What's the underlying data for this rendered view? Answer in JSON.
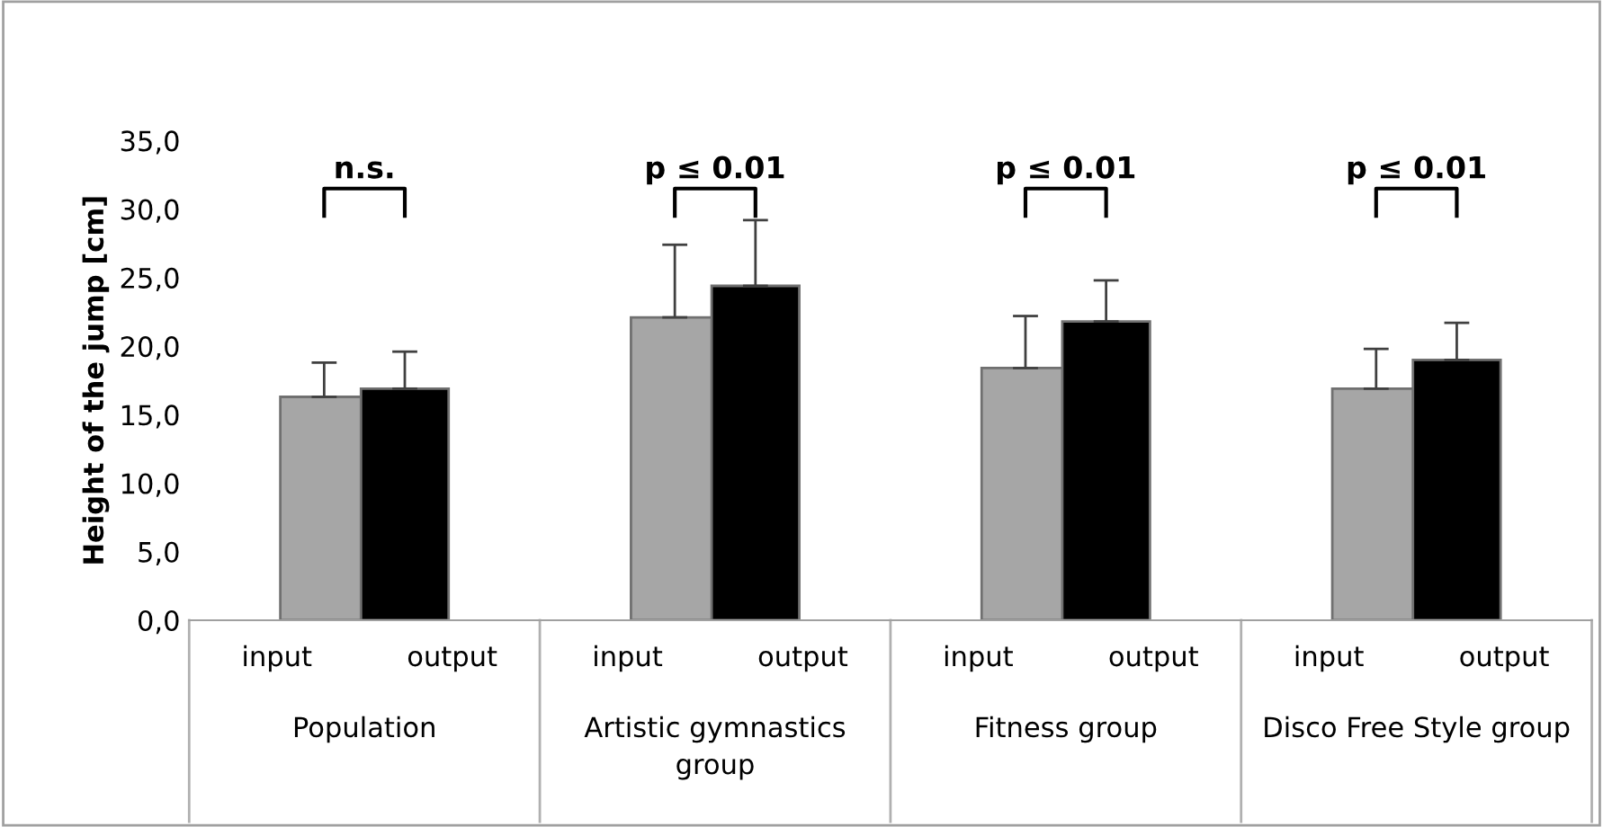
{
  "chart_data": {
    "type": "bar",
    "ylabel": "Height of the jump [cm]",
    "categories": [
      "input",
      "output",
      "input",
      "output",
      "input",
      "output",
      "input",
      "output"
    ],
    "values": [
      16.3,
      16.9,
      22.1,
      24.4,
      18.4,
      21.8,
      16.9,
      19.0
    ],
    "colors": [
      "#a6a6a6",
      "#000000",
      "#a6a6a6",
      "#000000",
      "#a6a6a6",
      "#000000",
      "#a6a6a6",
      "#000000"
    ],
    "errors": [
      [
        16.3,
        18.8
      ],
      [
        16.9,
        19.6
      ],
      [
        22.1,
        27.4
      ],
      [
        24.4,
        29.2
      ],
      [
        18.4,
        22.2
      ],
      [
        21.8,
        24.8
      ],
      [
        16.9,
        19.8
      ],
      [
        19.0,
        21.7
      ]
    ],
    "ylim": [
      0,
      35
    ],
    "yticks": [
      {
        "value": 0,
        "label": "0,0"
      },
      {
        "value": 5,
        "label": "5,0"
      },
      {
        "value": 10,
        "label": "10,0"
      },
      {
        "value": 15,
        "label": "15,0"
      },
      {
        "value": 20,
        "label": "20,0"
      },
      {
        "value": 25,
        "label": "25,0"
      },
      {
        "value": 30,
        "label": "30,0"
      },
      {
        "value": 35,
        "label": "35,0"
      }
    ],
    "annotations": [
      "Population",
      "Artistic gymnastics\ngroup",
      "Fitness group",
      "Disco Free Style group",
      "n.s.",
      "p ≤ 0.01",
      "p ≤ 0.01",
      "p ≤ 0.01"
    ],
    "grid": false
  }
}
